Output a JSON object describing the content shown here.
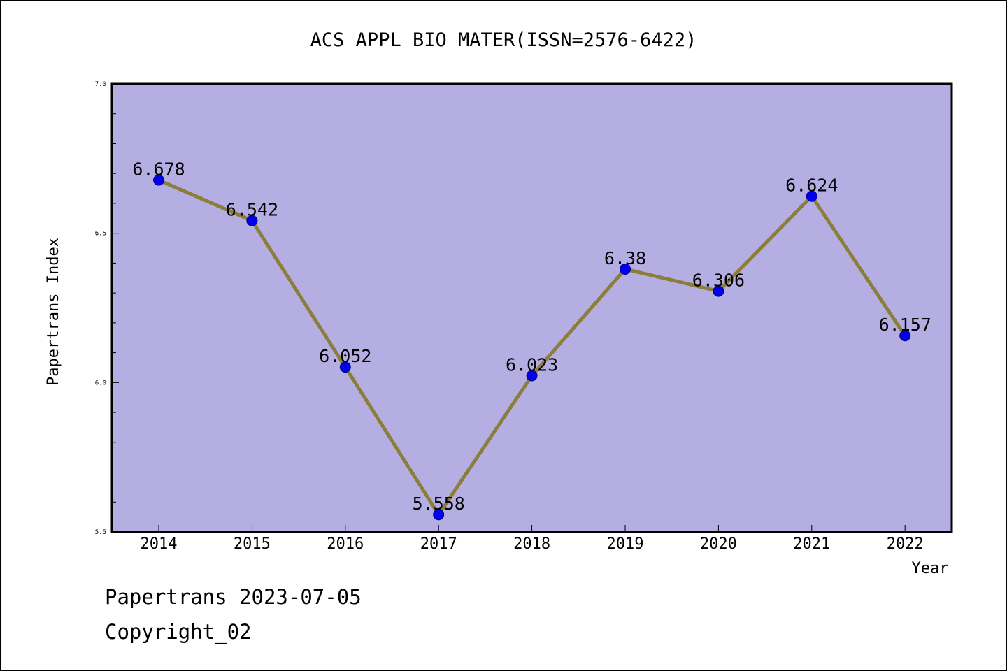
{
  "chart_data": {
    "type": "line",
    "title": "ACS APPL BIO MATER(ISSN=2576-6422)",
    "xlabel": "Year",
    "ylabel": "Papertrans Index",
    "categories": [
      "2014",
      "2015",
      "2016",
      "2017",
      "2018",
      "2019",
      "2020",
      "2021",
      "2022"
    ],
    "values": [
      6.678,
      6.542,
      6.052,
      5.558,
      6.023,
      6.38,
      6.306,
      6.624,
      6.157
    ],
    "data_labels": [
      "6.678",
      "6.542",
      "6.052",
      "5.558",
      "6.023",
      "6.38",
      "6.306",
      "6.624",
      "6.157"
    ],
    "ylim": [
      5.5,
      7.0
    ],
    "yticks": [
      "5.5",
      "6.0",
      "6.5",
      "7.0"
    ],
    "grid": false,
    "colors": {
      "plot_background": "#b5aee3",
      "line": "#8b7d3a",
      "marker": "#0000ee",
      "marker_edge": "#000080"
    }
  },
  "footer": {
    "line1": "Papertrans 2023-07-05",
    "line2": "Copyright_02"
  }
}
